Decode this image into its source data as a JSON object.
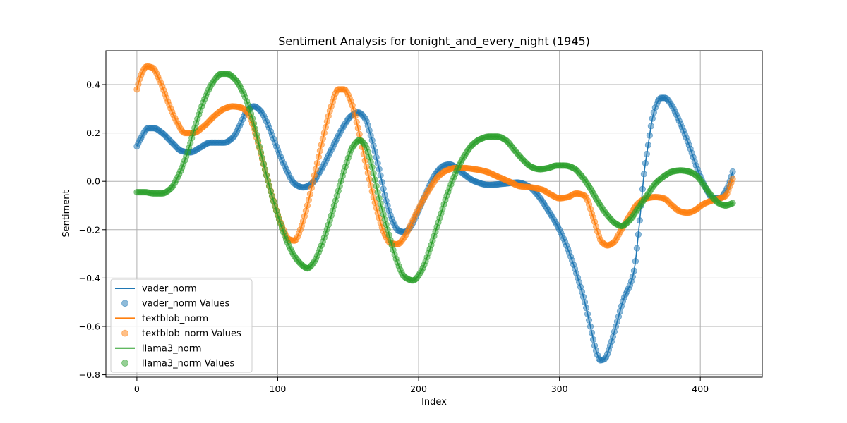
{
  "chart_data": {
    "type": "line",
    "title": "Sentiment Analysis for tonight_and_every_night (1945)",
    "xlabel": "Index",
    "ylabel": "Sentiment",
    "xlim": [
      -22,
      444
    ],
    "ylim": [
      -0.81,
      0.54
    ],
    "x_ticks": [
      0,
      100,
      200,
      300,
      400
    ],
    "x_tick_labels": [
      "0",
      "100",
      "200",
      "300",
      "400"
    ],
    "y_ticks": [
      -0.8,
      -0.6,
      -0.4,
      -0.2,
      0.0,
      0.2,
      0.4
    ],
    "y_tick_labels": [
      "−0.8",
      "−0.6",
      "−0.4",
      "−0.2",
      "0.0",
      "0.2",
      "0.4"
    ],
    "grid": true,
    "legend_position": "lower-left",
    "n_points": 424,
    "series": [
      {
        "name": "vader_norm",
        "scatter_name": "vader_norm Values",
        "color": "#1f77b4",
        "knots": [
          [
            0,
            0.145
          ],
          [
            3,
            0.18
          ],
          [
            8,
            0.22
          ],
          [
            12,
            0.22
          ],
          [
            18,
            0.2
          ],
          [
            25,
            0.16
          ],
          [
            32,
            0.125
          ],
          [
            38,
            0.12
          ],
          [
            45,
            0.14
          ],
          [
            52,
            0.16
          ],
          [
            57,
            0.16
          ],
          [
            62,
            0.16
          ],
          [
            68,
            0.18
          ],
          [
            73,
            0.23
          ],
          [
            78,
            0.29
          ],
          [
            83,
            0.31
          ],
          [
            88,
            0.29
          ],
          [
            94,
            0.22
          ],
          [
            100,
            0.13
          ],
          [
            106,
            0.05
          ],
          [
            112,
            -0.01
          ],
          [
            118,
            -0.025
          ],
          [
            124,
            -0.01
          ],
          [
            130,
            0.04
          ],
          [
            138,
            0.13
          ],
          [
            146,
            0.22
          ],
          [
            152,
            0.27
          ],
          [
            157,
            0.285
          ],
          [
            162,
            0.26
          ],
          [
            166,
            0.19
          ],
          [
            172,
            0.05
          ],
          [
            177,
            -0.08
          ],
          [
            182,
            -0.17
          ],
          [
            186,
            -0.205
          ],
          [
            190,
            -0.21
          ],
          [
            194,
            -0.19
          ],
          [
            200,
            -0.12
          ],
          [
            206,
            -0.04
          ],
          [
            212,
            0.03
          ],
          [
            218,
            0.065
          ],
          [
            222,
            0.07
          ],
          [
            226,
            0.06
          ],
          [
            232,
            0.03
          ],
          [
            240,
            0.0
          ],
          [
            250,
            -0.015
          ],
          [
            260,
            -0.01
          ],
          [
            270,
            -0.005
          ],
          [
            278,
            -0.02
          ],
          [
            285,
            -0.06
          ],
          [
            292,
            -0.12
          ],
          [
            300,
            -0.2
          ],
          [
            306,
            -0.28
          ],
          [
            312,
            -0.38
          ],
          [
            318,
            -0.5
          ],
          [
            322,
            -0.6
          ],
          [
            326,
            -0.7
          ],
          [
            329,
            -0.74
          ],
          [
            332,
            -0.735
          ],
          [
            336,
            -0.68
          ],
          [
            341,
            -0.58
          ],
          [
            346,
            -0.48
          ],
          [
            350,
            -0.43
          ],
          [
            353,
            -0.37
          ],
          [
            356,
            -0.22
          ],
          [
            358,
            -0.1
          ],
          [
            360,
            0.03
          ],
          [
            363,
            0.15
          ],
          [
            366,
            0.26
          ],
          [
            369,
            0.32
          ],
          [
            372,
            0.345
          ],
          [
            375,
            0.345
          ],
          [
            379,
            0.32
          ],
          [
            385,
            0.25
          ],
          [
            392,
            0.15
          ],
          [
            398,
            0.05
          ],
          [
            404,
            -0.03
          ],
          [
            409,
            -0.07
          ],
          [
            414,
            -0.07
          ],
          [
            418,
            -0.04
          ],
          [
            421,
            0.0
          ],
          [
            423,
            0.04
          ]
        ]
      },
      {
        "name": "textblob_norm",
        "scatter_name": "textblob_norm Values",
        "color": "#ff7f0e",
        "knots": [
          [
            0,
            0.38
          ],
          [
            3,
            0.44
          ],
          [
            7,
            0.475
          ],
          [
            11,
            0.47
          ],
          [
            16,
            0.42
          ],
          [
            22,
            0.33
          ],
          [
            28,
            0.25
          ],
          [
            34,
            0.2
          ],
          [
            40,
            0.2
          ],
          [
            48,
            0.23
          ],
          [
            55,
            0.27
          ],
          [
            62,
            0.3
          ],
          [
            68,
            0.31
          ],
          [
            74,
            0.305
          ],
          [
            79,
            0.28
          ],
          [
            84,
            0.2
          ],
          [
            90,
            0.07
          ],
          [
            96,
            -0.06
          ],
          [
            102,
            -0.17
          ],
          [
            108,
            -0.24
          ],
          [
            112,
            -0.245
          ],
          [
            116,
            -0.2
          ],
          [
            121,
            -0.1
          ],
          [
            127,
            0.05
          ],
          [
            133,
            0.2
          ],
          [
            138,
            0.31
          ],
          [
            143,
            0.38
          ],
          [
            147,
            0.38
          ],
          [
            152,
            0.33
          ],
          [
            157,
            0.22
          ],
          [
            163,
            0.06
          ],
          [
            170,
            -0.11
          ],
          [
            176,
            -0.22
          ],
          [
            180,
            -0.255
          ],
          [
            185,
            -0.26
          ],
          [
            190,
            -0.23
          ],
          [
            196,
            -0.16
          ],
          [
            202,
            -0.09
          ],
          [
            208,
            -0.03
          ],
          [
            214,
            0.02
          ],
          [
            220,
            0.045
          ],
          [
            226,
            0.055
          ],
          [
            232,
            0.055
          ],
          [
            240,
            0.05
          ],
          [
            248,
            0.04
          ],
          [
            256,
            0.02
          ],
          [
            264,
            0.0
          ],
          [
            272,
            -0.02
          ],
          [
            280,
            -0.025
          ],
          [
            288,
            -0.035
          ],
          [
            294,
            -0.055
          ],
          [
            300,
            -0.07
          ],
          [
            306,
            -0.065
          ],
          [
            312,
            -0.05
          ],
          [
            318,
            -0.06
          ],
          [
            324,
            -0.15
          ],
          [
            330,
            -0.25
          ],
          [
            334,
            -0.265
          ],
          [
            338,
            -0.255
          ],
          [
            344,
            -0.2
          ],
          [
            350,
            -0.14
          ],
          [
            356,
            -0.09
          ],
          [
            362,
            -0.07
          ],
          [
            368,
            -0.065
          ],
          [
            374,
            -0.07
          ],
          [
            380,
            -0.1
          ],
          [
            386,
            -0.125
          ],
          [
            391,
            -0.13
          ],
          [
            396,
            -0.12
          ],
          [
            402,
            -0.095
          ],
          [
            408,
            -0.08
          ],
          [
            414,
            -0.07
          ],
          [
            418,
            -0.06
          ],
          [
            421,
            -0.02
          ],
          [
            423,
            0.01
          ]
        ]
      },
      {
        "name": "llama3_norm",
        "scatter_name": "llama3_norm Values",
        "color": "#2ca02c",
        "knots": [
          [
            0,
            -0.045
          ],
          [
            6,
            -0.045
          ],
          [
            12,
            -0.05
          ],
          [
            18,
            -0.05
          ],
          [
            24,
            -0.03
          ],
          [
            30,
            0.03
          ],
          [
            36,
            0.12
          ],
          [
            42,
            0.24
          ],
          [
            48,
            0.34
          ],
          [
            54,
            0.41
          ],
          [
            60,
            0.445
          ],
          [
            64,
            0.445
          ],
          [
            70,
            0.42
          ],
          [
            76,
            0.36
          ],
          [
            82,
            0.26
          ],
          [
            88,
            0.12
          ],
          [
            94,
            -0.02
          ],
          [
            100,
            -0.14
          ],
          [
            106,
            -0.24
          ],
          [
            112,
            -0.31
          ],
          [
            118,
            -0.35
          ],
          [
            121,
            -0.36
          ],
          [
            125,
            -0.34
          ],
          [
            130,
            -0.28
          ],
          [
            136,
            -0.18
          ],
          [
            142,
            -0.06
          ],
          [
            148,
            0.06
          ],
          [
            153,
            0.14
          ],
          [
            158,
            0.17
          ],
          [
            162,
            0.15
          ],
          [
            166,
            0.08
          ],
          [
            172,
            -0.07
          ],
          [
            178,
            -0.2
          ],
          [
            184,
            -0.32
          ],
          [
            190,
            -0.395
          ],
          [
            196,
            -0.41
          ],
          [
            202,
            -0.37
          ],
          [
            208,
            -0.28
          ],
          [
            214,
            -0.17
          ],
          [
            220,
            -0.06
          ],
          [
            226,
            0.03
          ],
          [
            232,
            0.1
          ],
          [
            238,
            0.15
          ],
          [
            244,
            0.175
          ],
          [
            250,
            0.185
          ],
          [
            256,
            0.185
          ],
          [
            262,
            0.17
          ],
          [
            268,
            0.13
          ],
          [
            274,
            0.09
          ],
          [
            280,
            0.06
          ],
          [
            286,
            0.05
          ],
          [
            292,
            0.055
          ],
          [
            298,
            0.065
          ],
          [
            304,
            0.065
          ],
          [
            310,
            0.055
          ],
          [
            316,
            0.02
          ],
          [
            322,
            -0.03
          ],
          [
            328,
            -0.09
          ],
          [
            334,
            -0.14
          ],
          [
            340,
            -0.175
          ],
          [
            344,
            -0.185
          ],
          [
            350,
            -0.16
          ],
          [
            356,
            -0.11
          ],
          [
            362,
            -0.06
          ],
          [
            368,
            -0.01
          ],
          [
            374,
            0.02
          ],
          [
            380,
            0.04
          ],
          [
            386,
            0.045
          ],
          [
            392,
            0.04
          ],
          [
            398,
            0.02
          ],
          [
            403,
            -0.02
          ],
          [
            408,
            -0.06
          ],
          [
            413,
            -0.09
          ],
          [
            418,
            -0.1
          ],
          [
            421,
            -0.095
          ],
          [
            423,
            -0.09
          ]
        ]
      }
    ]
  }
}
